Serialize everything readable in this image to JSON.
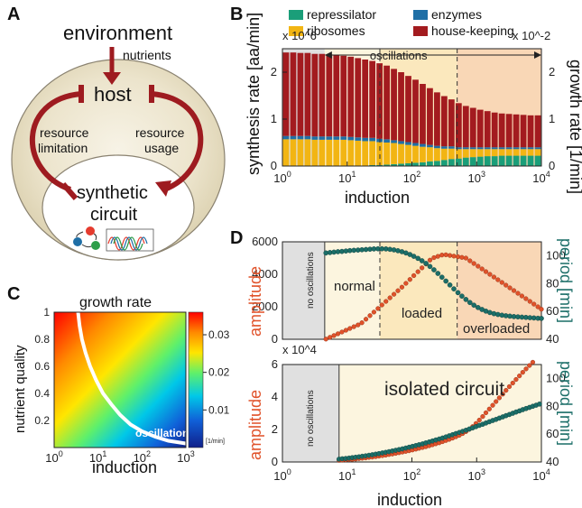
{
  "panels": {
    "A": {
      "label": "A",
      "environment": "environment",
      "nutrients": "nutrients",
      "host": "host",
      "resource_limitation": [
        "resource",
        "limitation"
      ],
      "resource_usage": [
        "resource",
        "usage"
      ],
      "synthetic_circuit": [
        "synthetic",
        "circuit"
      ]
    },
    "B": {
      "label": "B"
    },
    "C": {
      "label": "C"
    },
    "D": {
      "label": "D"
    }
  },
  "colors": {
    "repressilator": "#1a9e79",
    "enzymes": "#1f6fa6",
    "ribosomes": "#f2b513",
    "house_keeping": "#a31b1f",
    "amplitude": "#e0522a",
    "period": "#1b6e68",
    "host_fill": "#e6dfc9",
    "arrow": "#9e1b20"
  },
  "chart_data": [
    {
      "panel": "B",
      "type": "bar",
      "stacked": true,
      "x_scale": "log",
      "xlim": [
        1,
        10000
      ],
      "xlabel": "induction",
      "ylabel": "synthesis rate [aa/min]",
      "ylabel_right": "growth rate [1/min]",
      "y_multiplier": "x 10^6",
      "y_right_multiplier": "x 10^-2",
      "ylim": [
        0,
        2.5
      ],
      "ylim_right": [
        0,
        2.5
      ],
      "y_ticks": [
        0,
        1,
        2
      ],
      "y_right_ticks": [
        0,
        1,
        2
      ],
      "x_ticks": [
        "10^0",
        "10^1",
        "10^2",
        "10^3",
        "10^4"
      ],
      "legend": [
        "repressilator",
        "enzymes",
        "ribosomes",
        "house-keeping"
      ],
      "legend_placement": "top",
      "annotation": "oscillations",
      "annotation_range": [
        4.5,
        10000
      ],
      "regions": [
        {
          "name": "no oscillations",
          "x": [
            1,
            4.5
          ]
        },
        {
          "name": "normal",
          "x": [
            4.5,
            32
          ]
        },
        {
          "name": "loaded",
          "x": [
            32,
            500
          ]
        },
        {
          "name": "overloaded",
          "x": [
            500,
            10000
          ]
        }
      ],
      "dashed_lines_x": [
        32,
        500
      ],
      "induction": [
        1.0,
        1.3,
        1.69,
        2.2,
        2.86,
        3.71,
        4.83,
        6.27,
        8.16,
        10.6,
        13.8,
        17.9,
        23.3,
        30.3,
        39.4,
        51.2,
        66.5,
        86.5,
        112,
        146,
        190,
        247,
        321,
        417,
        542,
        705,
        917,
        1190,
        1550,
        2010,
        2620,
        3400,
        4420,
        5750,
        7480,
        9720
      ],
      "series": [
        {
          "name": "repressilator",
          "values": [
            0.0,
            0.0,
            0.0,
            0.0,
            0.0,
            0.0,
            0.0,
            0.01,
            0.01,
            0.01,
            0.01,
            0.01,
            0.02,
            0.02,
            0.03,
            0.04,
            0.05,
            0.06,
            0.07,
            0.08,
            0.1,
            0.11,
            0.13,
            0.15,
            0.16,
            0.18,
            0.19,
            0.2,
            0.21,
            0.21,
            0.22,
            0.22,
            0.22,
            0.22,
            0.22,
            0.22
          ]
        },
        {
          "name": "ribosomes",
          "values": [
            0.57,
            0.57,
            0.57,
            0.57,
            0.56,
            0.56,
            0.56,
            0.55,
            0.55,
            0.54,
            0.53,
            0.52,
            0.51,
            0.49,
            0.47,
            0.45,
            0.42,
            0.39,
            0.36,
            0.33,
            0.3,
            0.27,
            0.24,
            0.22,
            0.2,
            0.18,
            0.17,
            0.16,
            0.15,
            0.15,
            0.14,
            0.14,
            0.14,
            0.14,
            0.14,
            0.14
          ]
        },
        {
          "name": "enzymes",
          "values": [
            0.07,
            0.07,
            0.07,
            0.07,
            0.07,
            0.07,
            0.07,
            0.07,
            0.07,
            0.07,
            0.07,
            0.07,
            0.07,
            0.07,
            0.07,
            0.06,
            0.06,
            0.06,
            0.06,
            0.06,
            0.05,
            0.05,
            0.05,
            0.05,
            0.04,
            0.04,
            0.04,
            0.04,
            0.04,
            0.04,
            0.04,
            0.04,
            0.04,
            0.04,
            0.04,
            0.04
          ]
        },
        {
          "name": "house-keeping",
          "values": [
            1.78,
            1.78,
            1.77,
            1.77,
            1.76,
            1.76,
            1.75,
            1.74,
            1.72,
            1.71,
            1.69,
            1.67,
            1.64,
            1.61,
            1.57,
            1.52,
            1.47,
            1.41,
            1.35,
            1.28,
            1.21,
            1.14,
            1.07,
            1.0,
            0.94,
            0.88,
            0.84,
            0.8,
            0.77,
            0.74,
            0.72,
            0.71,
            0.7,
            0.69,
            0.68,
            0.68
          ]
        }
      ]
    },
    {
      "panel": "C",
      "type": "heatmap",
      "title": "growth rate",
      "x_scale": "log",
      "xlim": [
        1,
        1000
      ],
      "xlabel": "induction",
      "ylabel": "nutrient quality",
      "ylim": [
        0,
        1
      ],
      "x_ticks": [
        "10^0",
        "10^1",
        "10^2",
        "10^3"
      ],
      "y_ticks": [
        0.2,
        0.4,
        0.6,
        0.8,
        1
      ],
      "colorbar_ticks": [
        0.01,
        0.02,
        0.03
      ],
      "colorbar_unit": "[1/min]",
      "colorbar_range": [
        0,
        0.036
      ],
      "annotation": "oscillations",
      "boundary_curve": {
        "induction": [
          3.5,
          3.8,
          4.3,
          5.2,
          6.6,
          9.0,
          13,
          20,
          32,
          55,
          100,
          200,
          400,
          1000
        ],
        "nutrient_quality": [
          1.0,
          0.9,
          0.8,
          0.7,
          0.6,
          0.5,
          0.4,
          0.32,
          0.24,
          0.17,
          0.12,
          0.08,
          0.05,
          0.03
        ]
      }
    },
    {
      "panel": "D-top",
      "type": "scatter",
      "x_scale": "log",
      "xlim": [
        1,
        10000
      ],
      "ylabel": "amplitude",
      "ylabel_right": "period [min]",
      "ylim": [
        0,
        6000
      ],
      "ylim_right": [
        40,
        110
      ],
      "y_ticks": [
        0,
        2000,
        4000,
        6000
      ],
      "y_right_ticks": [
        40,
        60,
        80,
        100
      ],
      "regions": [
        "no oscillations",
        "normal",
        "loaded",
        "overloaded"
      ],
      "dashed_lines_x": [
        32,
        500
      ],
      "induction": [
        4.7,
        5.42,
        6.25,
        7.2,
        8.3,
        9.57,
        11.0,
        12.7,
        14.7,
        16.9,
        19.5,
        22.5,
        25.9,
        29.9,
        34.4,
        39.7,
        45.8,
        52.8,
        60.8,
        70.1,
        80.8,
        93.2,
        107,
        124,
        143,
        165,
        190,
        219,
        252,
        291,
        335,
        386,
        445,
        514,
        592,
        683,
        787,
        907,
        1050,
        1210,
        1390,
        1600,
        1850,
        2130,
        2460,
        2830,
        3260,
        3760,
        4340,
        5000,
        5770,
        6650,
        7660,
        8840,
        10000
      ],
      "series": [
        {
          "name": "amplitude",
          "values": [
            11,
            120,
            229,
            338,
            446,
            555,
            664,
            773,
            882,
            1016,
            1235,
            1454,
            1673,
            1893,
            2112,
            2331,
            2551,
            2770,
            2989,
            3208,
            3443,
            3681,
            3919,
            4158,
            4396,
            4634,
            4872,
            5024,
            5104,
            5185,
            5200,
            5160,
            5120,
            5080,
            5040,
            4998,
            4831,
            4664,
            4498,
            4331,
            4164,
            3998,
            3831,
            3664,
            3498,
            3331,
            3164,
            2998,
            2831,
            2664,
            2498,
            2331,
            2164,
            1998,
            1850
          ]
        },
        {
          "name": "period",
          "values": [
            102.0,
            102.3,
            102.6,
            102.9,
            103.1,
            103.4,
            103.7,
            103.9,
            104.1,
            104.3,
            104.5,
            104.7,
            104.9,
            105.0,
            105.0,
            104.9,
            104.6,
            104.2,
            103.6,
            102.9,
            102.0,
            100.9,
            99.6,
            98.1,
            96.4,
            94.5,
            92.3,
            89.9,
            87.3,
            84.6,
            81.8,
            79.0,
            76.2,
            73.5,
            71.0,
            68.6,
            66.4,
            64.5,
            62.8,
            61.4,
            60.2,
            59.2,
            58.4,
            57.8,
            57.3,
            56.9,
            56.6,
            56.3,
            56.1,
            55.9,
            55.7,
            55.5,
            55.3,
            55.1,
            55.0
          ]
        }
      ],
      "labels": {
        "no_oscillations": "no oscillations",
        "normal": "normal",
        "loaded": "loaded",
        "overloaded": "overloaded"
      }
    },
    {
      "panel": "D-bottom",
      "type": "scatter",
      "x_scale": "log",
      "xlim": [
        1,
        10000
      ],
      "xlabel": "induction",
      "ylabel": "amplitude",
      "ylabel_right": "period [min]",
      "y_multiplier": "x 10^4",
      "ylim": [
        0,
        6
      ],
      "ylim_right": [
        40,
        110
      ],
      "y_ticks": [
        0,
        2,
        4,
        6
      ],
      "y_right_ticks": [
        40,
        60,
        80,
        100
      ],
      "x_ticks": [
        "10^0",
        "10^1",
        "10^2",
        "10^3",
        "10^4"
      ],
      "labels": {
        "no_oscillations": "no oscillations",
        "title": "isolated circuit"
      },
      "induction": [
        7.5,
        8.4,
        9.5,
        10.7,
        12.0,
        13.5,
        15.2,
        17.1,
        19.3,
        21.7,
        24.5,
        27.6,
        31.0,
        35.0,
        39.4,
        44.3,
        49.9,
        56.2,
        63.3,
        71.3,
        80.3,
        90.5,
        102,
        115,
        129,
        146,
        164,
        185,
        208,
        234,
        264,
        297,
        335,
        377,
        425,
        478,
        539,
        607,
        683,
        770,
        867,
        976,
        1100,
        1240,
        1390,
        1570,
        1770,
        1990,
        2240,
        2530,
        2840,
        3200,
        3610,
        4060,
        4580,
        5150,
        5800,
        6540,
        7360,
        8290,
        9340
      ],
      "series": [
        {
          "name": "amplitude",
          "values": [
            0.1,
            0.11,
            0.13,
            0.15,
            0.16,
            0.18,
            0.21,
            0.23,
            0.25,
            0.28,
            0.3,
            0.33,
            0.36,
            0.39,
            0.42,
            0.46,
            0.49,
            0.53,
            0.57,
            0.61,
            0.65,
            0.69,
            0.74,
            0.79,
            0.84,
            0.89,
            0.94,
            1.0,
            1.06,
            1.12,
            1.18,
            1.25,
            1.32,
            1.39,
            1.47,
            1.55,
            1.64,
            1.75,
            1.87,
            2.01,
            2.18,
            2.37,
            2.58,
            2.8,
            3.03,
            3.26,
            3.49,
            3.72,
            3.95,
            4.18,
            4.41,
            4.64,
            4.86,
            5.08,
            5.3,
            5.52,
            5.73,
            5.94,
            6.14,
            6.34,
            6.55
          ]
        },
        {
          "name": "period",
          "values": [
            42.0,
            42.3,
            42.5,
            42.8,
            43.1,
            43.4,
            43.7,
            44.1,
            44.4,
            44.8,
            45.2,
            45.6,
            46.0,
            46.5,
            46.9,
            47.4,
            47.9,
            48.4,
            48.9,
            49.4,
            50.0,
            50.6,
            51.2,
            51.8,
            52.4,
            53.0,
            53.7,
            54.4,
            55.1,
            55.8,
            56.5,
            57.2,
            58.0,
            58.8,
            59.6,
            60.4,
            61.2,
            62.0,
            62.8,
            63.7,
            64.5,
            65.4,
            66.3,
            67.1,
            68.0,
            68.9,
            69.8,
            70.6,
            71.5,
            72.4,
            73.3,
            74.1,
            75.0,
            75.9,
            76.7,
            77.6,
            78.4,
            79.2,
            80.0,
            80.8,
            81.6
          ]
        }
      ]
    }
  ]
}
